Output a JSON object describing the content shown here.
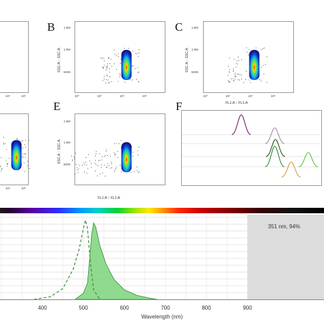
{
  "panels": {
    "b": {
      "letter": "B",
      "xlabel": "FL1-A :: FL1-A",
      "ylabel": "SSC-A :: SSC-A"
    },
    "c": {
      "letter": "C",
      "xlabel": "FL1-A :: FL1-A",
      "ylabel": "SSC-A :: SSC-A"
    },
    "e": {
      "letter": "E",
      "xlabel": "FL1-A :: FL1-A",
      "ylabel": "SSC-A :: SSC-A"
    },
    "f": {
      "letter": "F"
    }
  },
  "ticks": {
    "y": [
      "1.5M",
      "1.0M",
      "500K"
    ],
    "x": [
      "10⁰",
      "10²",
      "10⁴",
      "10⁶"
    ],
    "x_left": [
      "10⁴",
      "10⁶"
    ]
  },
  "histogram_colors": [
    "#6a1f6a",
    "#a58aa0",
    "#1f4f10",
    "#2a8a2a",
    "#d89a40",
    "#55c840"
  ],
  "spectrum": {
    "laser_label": "351 nm, 94%",
    "x_ticks": [
      "400",
      "500",
      "600",
      "700",
      "800",
      "900"
    ],
    "xlabel": "Wavelength (nm)",
    "fill_color": "#7cd37c",
    "dash_color": "#3a8a3a"
  }
}
